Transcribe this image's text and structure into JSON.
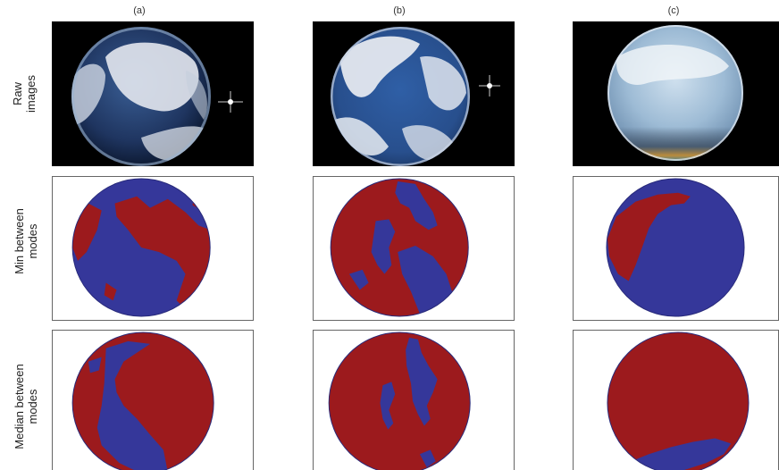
{
  "figure": {
    "column_labels": [
      "(a)",
      "(b)",
      "(c)"
    ],
    "row_labels": [
      {
        "lines": [
          "Raw",
          "images"
        ]
      },
      {
        "lines": [
          "Min between",
          "modes"
        ]
      },
      {
        "lines": [
          "Median between",
          "modes"
        ]
      }
    ]
  },
  "colors": {
    "sky_class": "#35379a",
    "cloud_class": "#9c1a1d",
    "raw_background": "#000000",
    "sky_blue": "#2c4f86",
    "cloud_white": "#e6e9ee"
  },
  "icons": [
    "fisheye-sky-photo",
    "segmentation-mask"
  ]
}
